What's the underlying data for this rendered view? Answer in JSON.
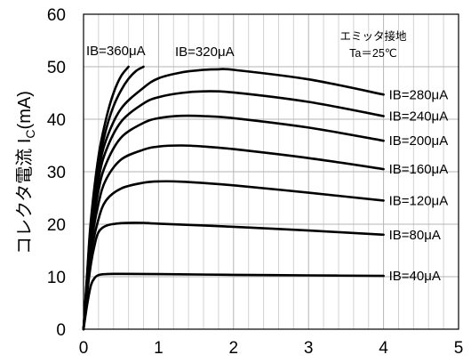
{
  "chart_data": {
    "type": "line",
    "xlabel": "",
    "ylabel": "コレクタ電流 I",
    "ylabel_sub": "C",
    "ylabel_unit": "(mA)",
    "xlim": [
      0,
      5
    ],
    "ylim": [
      0,
      60
    ],
    "x_ticks": [
      "0",
      "1",
      "2",
      "3",
      "4",
      "5"
    ],
    "y_ticks": [
      "0",
      "10",
      "20",
      "30",
      "40",
      "50",
      "60"
    ],
    "grid": true,
    "annotations": {
      "note1": "エミッタ接地",
      "note2": "Ta＝25℃"
    },
    "series": [
      {
        "name": "IB=40μA",
        "label": "IB=40μA",
        "points": [
          [
            0,
            0
          ],
          [
            0.05,
            4.8
          ],
          [
            0.1,
            8.4
          ],
          [
            0.15,
            9.8
          ],
          [
            0.2,
            10.3
          ],
          [
            0.3,
            10.5
          ],
          [
            0.5,
            10.55
          ],
          [
            1,
            10.5
          ],
          [
            2,
            10.35
          ],
          [
            3,
            10.25
          ],
          [
            4,
            10.15
          ]
        ]
      },
      {
        "name": "IB=80μA",
        "label": "IB=80μA",
        "points": [
          [
            0,
            0
          ],
          [
            0.05,
            7
          ],
          [
            0.1,
            12.5
          ],
          [
            0.15,
            16.2
          ],
          [
            0.2,
            18.5
          ],
          [
            0.3,
            19.7
          ],
          [
            0.5,
            20.2
          ],
          [
            0.8,
            20.25
          ],
          [
            1,
            20.1
          ],
          [
            2,
            19.5
          ],
          [
            3,
            18.8
          ],
          [
            4,
            18.0
          ]
        ]
      },
      {
        "name": "IB=120μA",
        "label": "IB=120μA",
        "points": [
          [
            0,
            0
          ],
          [
            0.05,
            8
          ],
          [
            0.1,
            14.5
          ],
          [
            0.2,
            21
          ],
          [
            0.3,
            24.5
          ],
          [
            0.5,
            26.8
          ],
          [
            0.8,
            27.9
          ],
          [
            1,
            28.15
          ],
          [
            1.3,
            28.1
          ],
          [
            2,
            27.4
          ],
          [
            3,
            26.0
          ],
          [
            4,
            24.5
          ]
        ]
      },
      {
        "name": "IB=160μA",
        "label": "IB=160μA",
        "points": [
          [
            0,
            0
          ],
          [
            0.05,
            8.5
          ],
          [
            0.1,
            16
          ],
          [
            0.2,
            24
          ],
          [
            0.3,
            28.5
          ],
          [
            0.5,
            32.3
          ],
          [
            0.8,
            34.2
          ],
          [
            1,
            34.8
          ],
          [
            1.3,
            35.0
          ],
          [
            1.6,
            34.8
          ],
          [
            2,
            34.3
          ],
          [
            3,
            32.6
          ],
          [
            4,
            30.5
          ]
        ]
      },
      {
        "name": "IB=200μA",
        "label": "IB=200μA",
        "points": [
          [
            0,
            0
          ],
          [
            0.05,
            9
          ],
          [
            0.1,
            17
          ],
          [
            0.2,
            26.5
          ],
          [
            0.3,
            31.5
          ],
          [
            0.5,
            36.5
          ],
          [
            0.8,
            39.3
          ],
          [
            1,
            40.2
          ],
          [
            1.3,
            40.65
          ],
          [
            1.6,
            40.6
          ],
          [
            2,
            40.2
          ],
          [
            3,
            38.4
          ],
          [
            4,
            35.9
          ]
        ]
      },
      {
        "name": "IB=240μA",
        "label": "IB=240μA",
        "points": [
          [
            0,
            0
          ],
          [
            0.05,
            9.5
          ],
          [
            0.1,
            18
          ],
          [
            0.2,
            28.5
          ],
          [
            0.3,
            34
          ],
          [
            0.5,
            39.5
          ],
          [
            0.8,
            43
          ],
          [
            1,
            44.2
          ],
          [
            1.3,
            45
          ],
          [
            1.6,
            45.3
          ],
          [
            2,
            45.1
          ],
          [
            3,
            43.3
          ],
          [
            4,
            40.6
          ]
        ]
      },
      {
        "name": "IB=280μA",
        "label": "IB=280μA",
        "points": [
          [
            0,
            0
          ],
          [
            0.05,
            10
          ],
          [
            0.1,
            19
          ],
          [
            0.2,
            30
          ],
          [
            0.3,
            36
          ],
          [
            0.5,
            42
          ],
          [
            0.8,
            46
          ],
          [
            1,
            47.8
          ],
          [
            1.3,
            48.9
          ],
          [
            1.6,
            49.4
          ],
          [
            1.8,
            49.5
          ],
          [
            2,
            49.4
          ],
          [
            3,
            47.6
          ],
          [
            4,
            44.7
          ]
        ]
      },
      {
        "name": "IB=320μA",
        "label": "IB=320μA",
        "points": [
          [
            0,
            0
          ],
          [
            0.05,
            10.5
          ],
          [
            0.1,
            20
          ],
          [
            0.2,
            31.5
          ],
          [
            0.3,
            38
          ],
          [
            0.4,
            42.5
          ],
          [
            0.5,
            45.5
          ],
          [
            0.6,
            47.7
          ],
          [
            0.7,
            49.2
          ],
          [
            0.8,
            50.0
          ]
        ]
      },
      {
        "name": "IB=360μA",
        "label": "IB=360μA",
        "points": [
          [
            0,
            0
          ],
          [
            0.05,
            11
          ],
          [
            0.1,
            21
          ],
          [
            0.2,
            33
          ],
          [
            0.3,
            40
          ],
          [
            0.4,
            45
          ],
          [
            0.5,
            48.2
          ],
          [
            0.6,
            50.0
          ]
        ]
      }
    ]
  }
}
